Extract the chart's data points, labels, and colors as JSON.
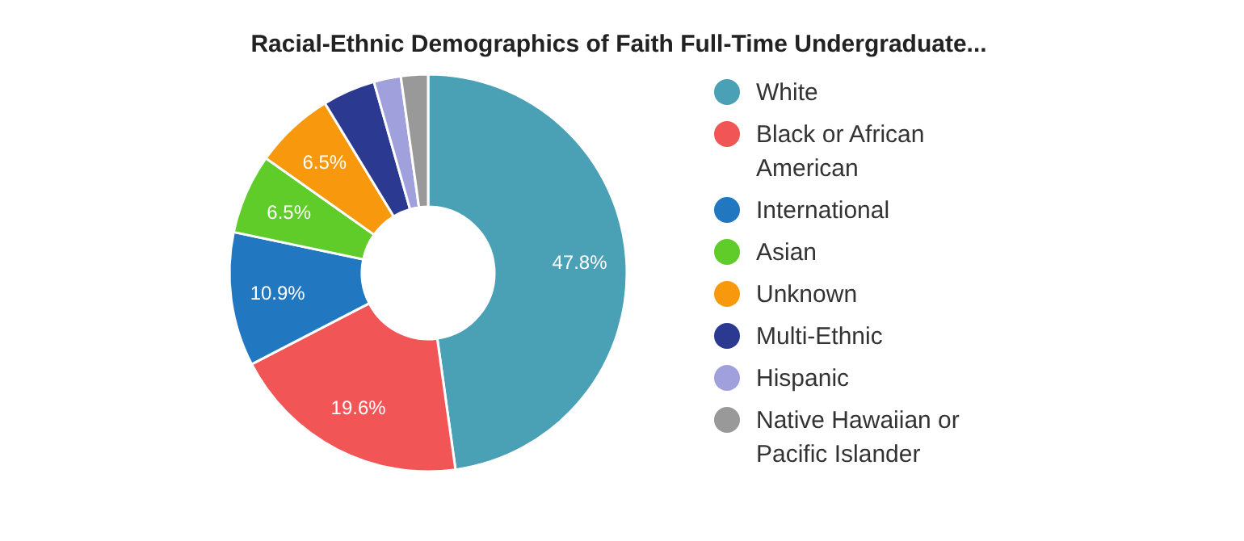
{
  "chart_data": {
    "type": "donut",
    "title": "Racial-Ethnic Demographics of Faith Full-Time Undergraduate...",
    "categories": [
      "White",
      "Black or African American",
      "International",
      "Asian",
      "Unknown",
      "Multi-Ethnic",
      "Hispanic",
      "Native Hawaiian or Pacific Islander"
    ],
    "values": [
      47.8,
      19.6,
      10.9,
      6.5,
      6.5,
      4.3,
      2.2,
      2.2
    ],
    "colors": [
      "#4aa0b5",
      "#f25555",
      "#2178c0",
      "#5fcc2a",
      "#f7980d",
      "#2b3990",
      "#a0a0dc",
      "#999999"
    ],
    "value_labels": [
      "47.8%",
      "19.6%",
      "10.9%",
      "6.5%",
      "6.5%",
      null,
      null,
      null
    ],
    "legend": "right"
  }
}
